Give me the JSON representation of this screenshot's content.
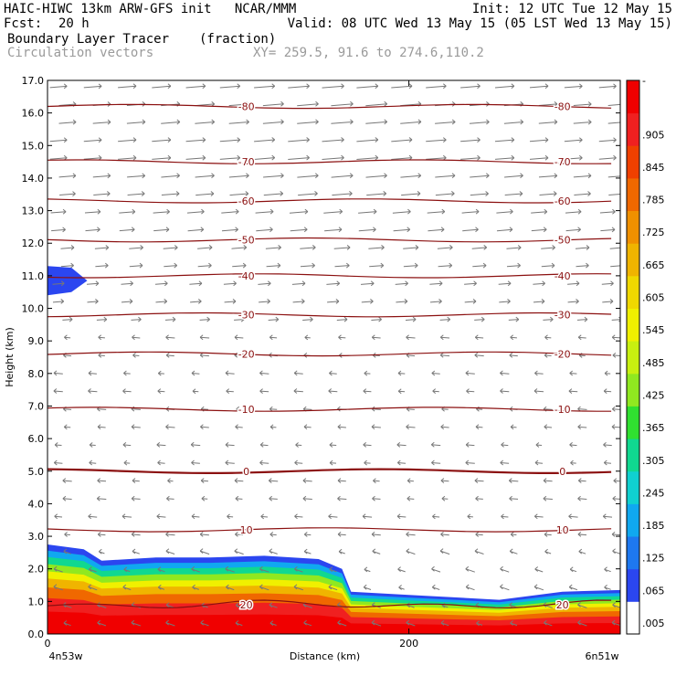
{
  "header": {
    "line1_left": "HAIC-HIWC 13km ARW-GFS init   NCAR/MMM",
    "line1_right": "Init: 12 UTC Tue 12 May 15",
    "fcst_label": "Fcst:",
    "fcst_value": "20 h",
    "valid": "Valid: 08 UTC Wed 13 May 15 (05 LST Wed 13 May 15)",
    "field_name": "Boundary Layer Tracer",
    "field_units": "(fraction)",
    "vector_label": "Circulation vectors",
    "xy_label": "XY= 259.5, 91.6 to 274.6,110.2"
  },
  "chart_data": {
    "type": "heatmap",
    "ylabel": "Height (km)",
    "xlabel": "Distance (km)",
    "x_ticks": [
      0,
      200
    ],
    "x_end_labels": {
      "left": "4n53w",
      "right": "6n51w"
    },
    "xlim": [
      0,
      317
    ],
    "ylim": [
      0,
      17
    ],
    "y_ticks": [
      "0.0",
      "1.0",
      "2.0",
      "3.0",
      "4.0",
      "5.0",
      "6.0",
      "7.0",
      "8.0",
      "9.0",
      "10.0",
      "11.0",
      "12.0",
      "13.0",
      "14.0",
      "15.0",
      "16.0",
      "17.0"
    ],
    "colorbar_labels": [
      ".005",
      ".065",
      ".125",
      ".185",
      ".245",
      ".305",
      ".365",
      ".425",
      ".485",
      ".545",
      ".605",
      ".665",
      ".725",
      ".785",
      ".845",
      ".905",
      "-"
    ],
    "colorbar_colors": [
      "#ffffff",
      "#2b46f0",
      "#1e78f0",
      "#10a8f0",
      "#10d0d0",
      "#10d890",
      "#30e030",
      "#90e820",
      "#c8f010",
      "#f0f000",
      "#f0d800",
      "#f0b400",
      "#f09000",
      "#f06800",
      "#f04000",
      "#f02020",
      "#f00000"
    ],
    "temperature_contours_C": [
      {
        "label": "-80",
        "height_km": 16.2
      },
      {
        "label": "-70",
        "height_km": 14.5
      },
      {
        "label": "-60",
        "height_km": 13.3
      },
      {
        "label": "-50",
        "height_km": 12.1
      },
      {
        "label": "-40",
        "height_km": 11.0
      },
      {
        "label": "-30",
        "height_km": 9.8
      },
      {
        "label": "-20",
        "height_km": 8.6
      },
      {
        "label": "-10",
        "height_km": 6.9
      },
      {
        "label": "0",
        "height_km": 5.0
      },
      {
        "label": "10",
        "height_km": 3.2
      },
      {
        "label": "20",
        "height_km": 0.9
      }
    ],
    "boundary_layer_top_km": [
      {
        "x": 0,
        "y": 2.75
      },
      {
        "x": 20,
        "y": 2.6
      },
      {
        "x": 30,
        "y": 2.25
      },
      {
        "x": 60,
        "y": 2.35
      },
      {
        "x": 90,
        "y": 2.35
      },
      {
        "x": 120,
        "y": 2.4
      },
      {
        "x": 150,
        "y": 2.3
      },
      {
        "x": 163,
        "y": 2.0
      },
      {
        "x": 168,
        "y": 1.3
      },
      {
        "x": 200,
        "y": 1.2
      },
      {
        "x": 250,
        "y": 1.05
      },
      {
        "x": 285,
        "y": 1.3
      },
      {
        "x": 317,
        "y": 1.35
      }
    ],
    "upper_tracer_patch": {
      "x_range": [
        0,
        22
      ],
      "height_range_km": [
        10.4,
        11.3
      ]
    },
    "vectors": "upper levels westerly (rightward), below ~9 km easterly (leftward)"
  }
}
